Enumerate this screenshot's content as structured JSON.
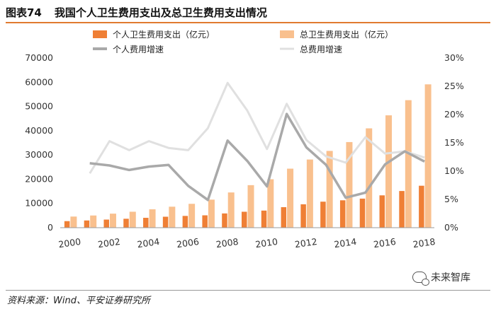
{
  "figure": {
    "number": "图表74",
    "title": "我国个人卫生费用支出及总卫生费用支出情况"
  },
  "source_text": "资料来源：Wind、平安证券研究所",
  "watermark_text": "未来智库",
  "colors": {
    "personal_bar": "#ef7f35",
    "total_bar": "#f9c08e",
    "personal_line": "#a9a9a9",
    "total_line": "#e0e0e0",
    "rule": "#e07a30"
  },
  "chart_data": {
    "type": "bar",
    "x": [
      2000,
      2001,
      2002,
      2003,
      2004,
      2005,
      2006,
      2007,
      2008,
      2009,
      2010,
      2011,
      2012,
      2013,
      2014,
      2015,
      2016,
      2017,
      2018
    ],
    "x_tick_labels": [
      "2000",
      "2002",
      "2004",
      "2006",
      "2008",
      "2010",
      "2012",
      "2014",
      "2016",
      "2018"
    ],
    "y_left_ticks": [
      "0",
      "10000",
      "20000",
      "30000",
      "40000",
      "50000",
      "60000",
      "70000"
    ],
    "y_left_range": [
      0,
      70000
    ],
    "y_right_ticks": [
      "0%",
      "5%",
      "10%",
      "15%",
      "20%",
      "25%",
      "30%"
    ],
    "y_right_range": [
      0,
      30
    ],
    "legend": {
      "personal_bar": "个人卫生费用支出（亿元）",
      "total_bar": "总卫生费用支出（亿元）",
      "personal_line": "个人费用增速",
      "total_line": "总费用增速"
    },
    "series": [
      {
        "key": "total_bar",
        "kind": "bar",
        "axis": "left",
        "values": [
          4587,
          5026,
          5790,
          6584,
          7590,
          8660,
          9843,
          11574,
          14535,
          17542,
          19980,
          24346,
          28119,
          31669,
          35312,
          40975,
          46345,
          52598,
          59122
        ]
      },
      {
        "key": "personal_bar",
        "kind": "bar",
        "axis": "left",
        "values": [
          2705,
          2975,
          3343,
          3679,
          4071,
          4521,
          4854,
          5098,
          5876,
          6572,
          7051,
          8465,
          9656,
          10730,
          11295,
          11992,
          13338,
          15134,
          17305
        ]
      },
      {
        "key": "personal_line",
        "kind": "line",
        "axis": "right",
        "values": [
          null,
          11.4,
          11.0,
          10.2,
          10.8,
          11.1,
          7.4,
          4.9,
          15.4,
          11.8,
          7.3,
          20.1,
          14.2,
          11.1,
          5.3,
          6.2,
          11.2,
          13.5,
          11.7
        ]
      },
      {
        "key": "total_line",
        "kind": "line",
        "axis": "right",
        "values": [
          null,
          9.6,
          15.3,
          13.7,
          15.3,
          14.1,
          13.7,
          17.6,
          25.6,
          20.7,
          13.9,
          21.9,
          15.5,
          12.6,
          11.5,
          16.0,
          13.1,
          13.5,
          12.4
        ]
      }
    ]
  }
}
